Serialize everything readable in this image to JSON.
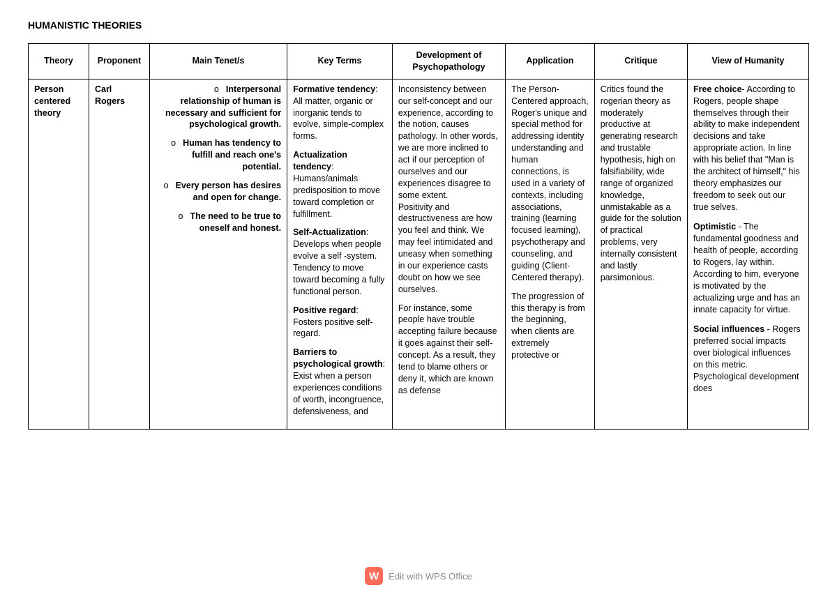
{
  "title": "HUMANISTIC THEORIES",
  "headers": {
    "theory": "Theory",
    "proponent": "Proponent",
    "tenets": "Main Tenet/s",
    "terms": "Key Terms",
    "development": "Development of Psychopathology",
    "application": "Application",
    "critique": "Critique",
    "view": "View of Humanity"
  },
  "row": {
    "theory": "Person centered theory",
    "proponent": "Carl Rogers",
    "tenets": [
      {
        "bold": "Interpersonal",
        "rest": "relationship of human is necessary and sufficient for psychological growth."
      },
      {
        "bold": "Human has tendency to",
        "rest": "fulfill and reach one's potential."
      },
      {
        "bold": "Every person has desires",
        "rest": "and open for change."
      },
      {
        "bold": "The need to be true to",
        "rest": "oneself and honest."
      }
    ],
    "terms": [
      {
        "label": "Formative tendency",
        "text": ": All matter, organic or inorganic tends to evolve, simple-complex forms."
      },
      {
        "label": "Actualization tendency",
        "text": ": Humans/animals predisposition to move toward completion or fulfillment."
      },
      {
        "label": "Self-Actualization",
        "text": ": Develops when people evolve a self -system. Tendency to move toward becoming a fully functional person."
      },
      {
        "label": "Positive regard",
        "text": ": Fosters positive self-regard."
      },
      {
        "label": "Barriers to psychological growth",
        "text": ": Exist when a person experiences conditions of worth, incongruence, defensiveness, and"
      }
    ],
    "development_p1": "Inconsistency between our self-concept and our experience, according to the notion, causes pathology. In other words, we are more inclined to act if our perception of ourselves and our experiences disagree to some extent.",
    "development_p2": "Positivity and destructiveness are how you feel and think. We may feel intimidated and uneasy when something in our experience casts doubt on how we see ourselves.",
    "development_p3": "For instance, some people have trouble accepting failure because it goes against their self-concept. As a result, they tend to blame others or deny it, which are known as defense",
    "application_p1": "The Person-Centered approach, Roger's unique and special method for addressing identity understanding and human connections, is used in a variety of contexts, including associations, training (learning focused learning), psychotherapy and counseling, and guiding (Client-Centered therapy).",
    "application_p2": "The progression of this therapy is from the beginning, when clients are extremely protective or",
    "critique": "Critics found the rogerian theory as moderately productive at generating research and trustable hypothesis, high on falsifiability, wide range of organized knowledge, unmistakable as a guide for the solution of practical problems, very internally consistent and lastly parsimonious.",
    "view": [
      {
        "label": "Free choice",
        "text": "- According to Rogers, people shape themselves through their ability to make independent decisions and take appropriate action. In line with his belief that \"Man is the architect of himself,\" his theory emphasizes our freedom to seek out our true selves."
      },
      {
        "label": "Optimistic",
        "text": " - The fundamental goodness and health of people, according to Rogers, lay within. According to him, everyone is motivated by the actualizing urge and has an innate capacity for virtue."
      },
      {
        "label": "Social influences",
        "text": " - Rogers preferred social impacts over biological influences on this metric. Psychological development does"
      }
    ]
  },
  "footer": {
    "icon_letter": "W",
    "text": "Edit with WPS Office"
  },
  "colors": {
    "background": "#ffffff",
    "border": "#000000",
    "footer_text": "#8c8c8c",
    "badge_bg": "#fd6b5a",
    "badge_fg": "#ffffff"
  }
}
